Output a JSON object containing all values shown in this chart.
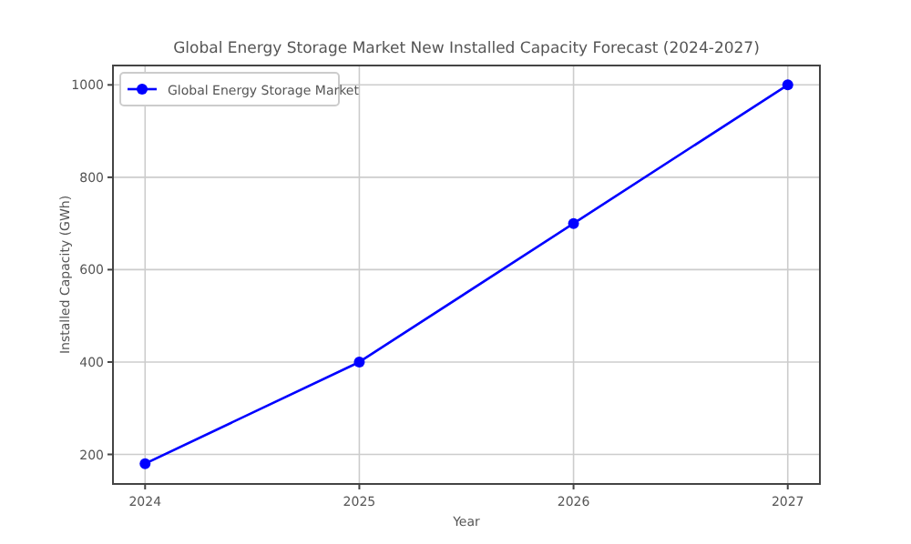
{
  "chart_data": {
    "type": "line",
    "title": "Global Energy Storage Market New Installed Capacity Forecast (2024-2027)",
    "xlabel": "Year",
    "ylabel": "Installed Capacity (GWh)",
    "x": [
      2024,
      2025,
      2026,
      2027
    ],
    "series": [
      {
        "name": "Global Energy Storage Market",
        "color": "#0000ff",
        "values": [
          180,
          400,
          700,
          1000
        ]
      }
    ],
    "xlim": [
      2023.85,
      2027.15
    ],
    "xticks": [
      2024,
      2025,
      2026,
      2027
    ],
    "ylim": [
      136,
      1042
    ],
    "yticks": [
      200,
      400,
      600,
      800,
      1000
    ],
    "grid": true,
    "legend": "top left",
    "marker": "circle",
    "line_style": "solid"
  }
}
